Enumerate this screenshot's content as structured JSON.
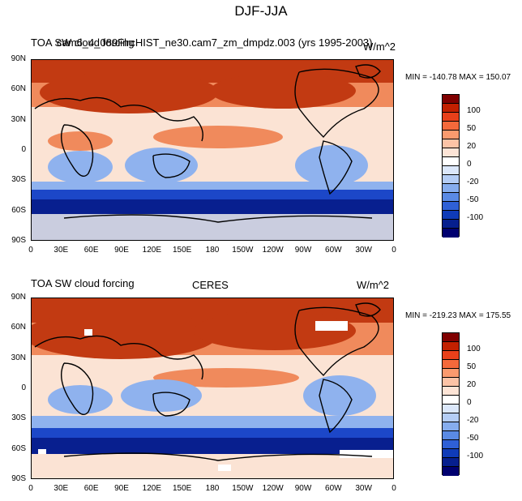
{
  "title": "DJF-JJA",
  "panels": [
    {
      "left_title": "TOA SW cloud forcing",
      "center_title": "cam6_4_089FlrcHIST_ne30.cam7_zm_dmpdz.003 (yrs 1995-2003)",
      "units": "W/m^2",
      "min_max": "MIN = -140.78 MAX = 150.07"
    },
    {
      "left_title": "TOA SW cloud forcing",
      "center_title": "CERES",
      "units": "W/m^2",
      "min_max": "MIN = -219.23 MAX = 175.55"
    }
  ],
  "lat_labels": [
    "90N",
    "60N",
    "30N",
    "0",
    "30S",
    "60S",
    "90S"
  ],
  "lon_labels": [
    "0",
    "30E",
    "60E",
    "90E",
    "120E",
    "150E",
    "180",
    "150W",
    "120W",
    "90W",
    "60W",
    "30W",
    "0"
  ],
  "colorbar": {
    "labels": [
      "100",
      "50",
      "20",
      "0",
      "-20",
      "-50",
      "-100"
    ],
    "colors": [
      "#800000",
      "#c22000",
      "#e8401a",
      "#f4693b",
      "#fa9a6e",
      "#fcc3a6",
      "#fde4d6",
      "#ffffff",
      "#dbe7fa",
      "#b4cdf5",
      "#86adee",
      "#5a8ae4",
      "#2f60d6",
      "#0f3bb8",
      "#061f8e",
      "#000070"
    ]
  },
  "map_colors": {
    "land": "#000000",
    "strong_pos": "#c23a12",
    "mid_pos": "#f08a5c",
    "neutral": "#fbe3d4",
    "mid_neg": "#8fb2ee",
    "strong_neg": "#1c47c8",
    "deep_neg": "#081f8f",
    "missing": "#ffffff"
  }
}
